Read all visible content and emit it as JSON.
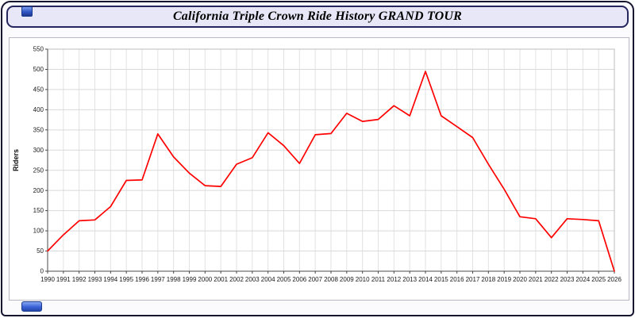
{
  "page": {
    "title": "California Triple Crown Ride History GRAND TOUR"
  },
  "chart_data": {
    "type": "line",
    "title": "California Triple Crown Ride History GRAND TOUR",
    "xlabel": "",
    "ylabel": "Riders",
    "ylim": [
      0,
      550
    ],
    "ytick_step": 50,
    "grid": true,
    "legend": "none",
    "line_color": "#ff0000",
    "categories": [
      1990,
      1991,
      1992,
      1993,
      1994,
      1995,
      1996,
      1997,
      1998,
      1999,
      2000,
      2001,
      2002,
      2003,
      2004,
      2005,
      2006,
      2007,
      2008,
      2009,
      2010,
      2011,
      2012,
      2013,
      2014,
      2015,
      2016,
      2017,
      2018,
      2019,
      2020,
      2021,
      2022,
      2023,
      2024,
      2025,
      2026
    ],
    "series": [
      {
        "name": "Riders",
        "color": "#ff0000",
        "values": [
          50,
          90,
          125,
          127,
          160,
          225,
          226,
          340,
          283,
          243,
          212,
          210,
          265,
          281,
          343,
          311,
          267,
          338,
          341,
          391,
          371,
          376,
          410,
          385,
          495,
          385,
          358,
          331,
          265,
          203,
          135,
          130,
          83,
          130,
          128,
          125,
          0
        ]
      }
    ]
  }
}
